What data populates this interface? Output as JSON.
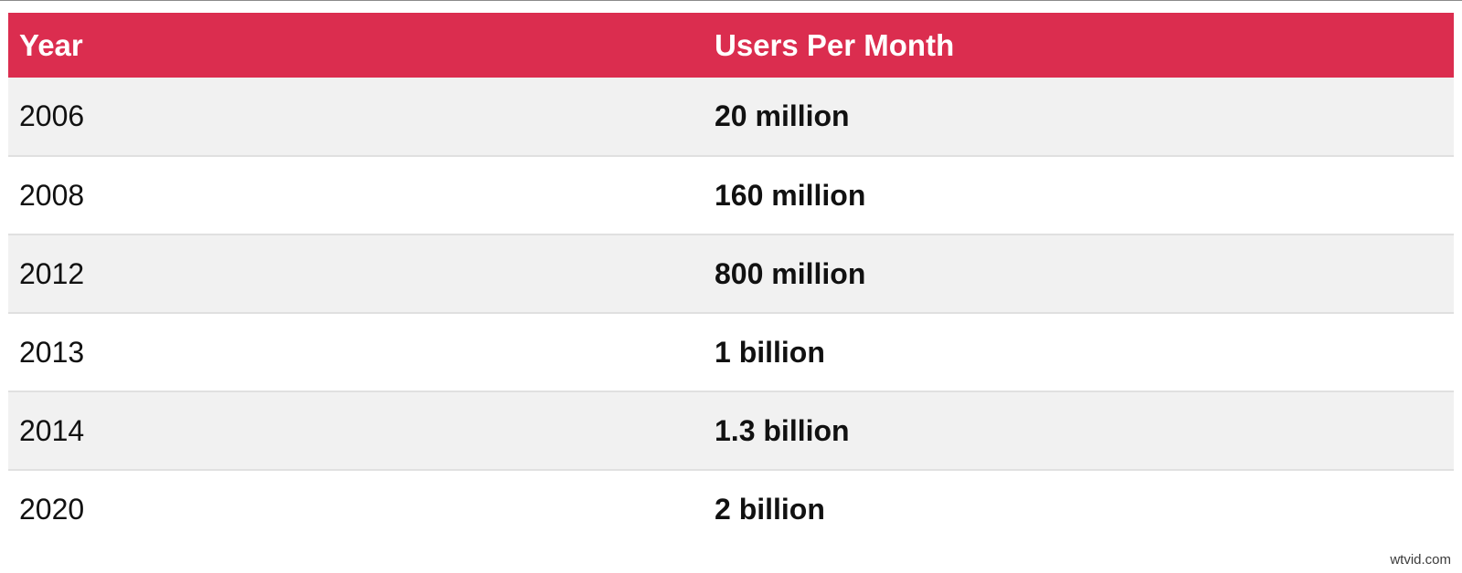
{
  "table": {
    "headers": [
      "Year",
      "Users Per Month"
    ],
    "rows": [
      {
        "year": "2006",
        "users": "20 million"
      },
      {
        "year": "2008",
        "users": "160 million"
      },
      {
        "year": "2012",
        "users": "800 million"
      },
      {
        "year": "2013",
        "users": "1 billion"
      },
      {
        "year": "2014",
        "users": "1.3 billion"
      },
      {
        "year": "2020",
        "users": "2 billion"
      }
    ]
  },
  "colors": {
    "header_bg": "#db2d4f",
    "header_text": "#ffffff",
    "row_alt_bg": "#f1f1f1",
    "row_bg": "#ffffff",
    "divider": "#e0e0e0"
  },
  "watermark": "wtvid.com"
}
